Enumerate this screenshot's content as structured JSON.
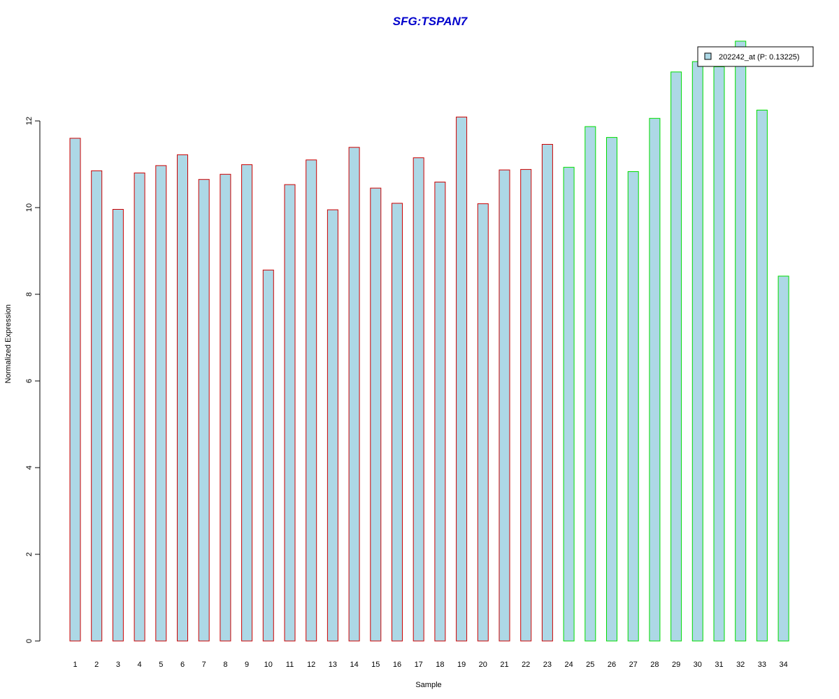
{
  "chart_data": {
    "type": "bar",
    "title": "SFG:TSPAN7",
    "xlabel": "Sample",
    "ylabel": "Normalized Expression",
    "categories": [
      "1",
      "2",
      "3",
      "4",
      "5",
      "6",
      "7",
      "8",
      "9",
      "10",
      "11",
      "12",
      "13",
      "14",
      "15",
      "16",
      "17",
      "18",
      "19",
      "20",
      "21",
      "22",
      "23",
      "24",
      "25",
      "26",
      "27",
      "28",
      "29",
      "30",
      "31",
      "32",
      "33",
      "34"
    ],
    "series": [
      {
        "name": "202242_at (P: 0.13225)",
        "values": [
          11.6,
          10.85,
          9.96,
          10.8,
          10.97,
          11.22,
          10.65,
          10.77,
          10.99,
          8.56,
          10.53,
          11.1,
          9.95,
          11.39,
          10.45,
          10.1,
          11.15,
          10.59,
          12.09,
          10.09,
          10.87,
          10.88,
          11.46,
          10.93,
          11.87,
          11.62,
          10.83,
          12.06,
          13.13,
          13.37,
          13.25,
          13.84,
          12.25,
          8.42
        ]
      }
    ],
    "group_border_colors": [
      "#cc0000",
      "#cc0000",
      "#cc0000",
      "#cc0000",
      "#cc0000",
      "#cc0000",
      "#cc0000",
      "#cc0000",
      "#cc0000",
      "#cc0000",
      "#cc0000",
      "#cc0000",
      "#cc0000",
      "#cc0000",
      "#cc0000",
      "#cc0000",
      "#cc0000",
      "#cc0000",
      "#cc0000",
      "#cc0000",
      "#cc0000",
      "#cc0000",
      "#cc0000",
      "#00dd00",
      "#00dd00",
      "#00dd00",
      "#00dd00",
      "#00dd00",
      "#00dd00",
      "#00dd00",
      "#00dd00",
      "#00dd00",
      "#00dd00",
      "#00dd00"
    ],
    "bar_fill": "#add8e6",
    "title_color": "#0000cc",
    "yticks": [
      0,
      2,
      4,
      6,
      8,
      10,
      12
    ],
    "ylim": [
      0,
      13.84
    ],
    "grid": false,
    "legend_position": "top-right"
  }
}
